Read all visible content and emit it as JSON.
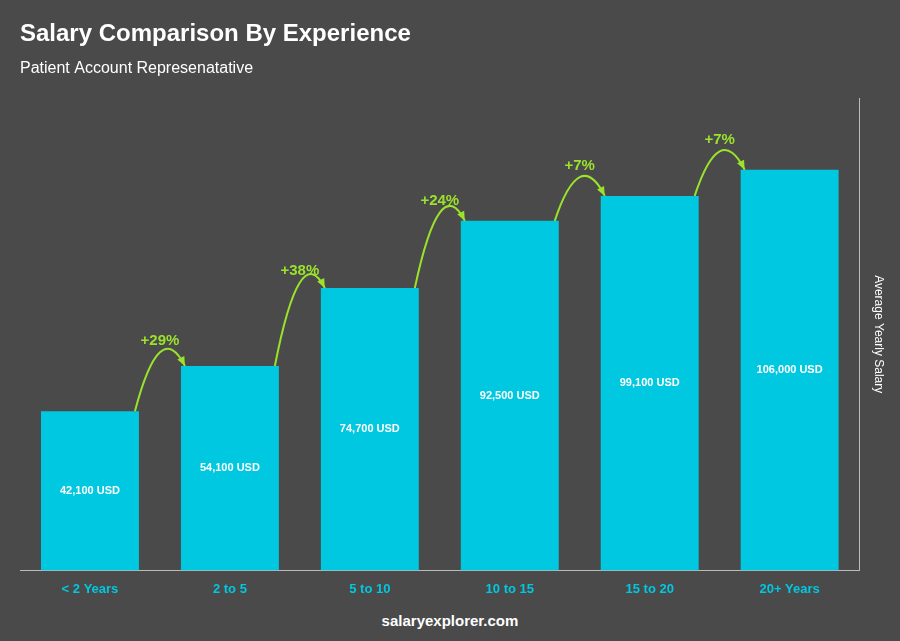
{
  "chart_data": {
    "type": "bar",
    "title": "Salary Comparison By Experience",
    "subtitle": "Patient Account Represenatative",
    "y_label": "Average Yearly Salary",
    "categories": [
      "< 2 Years",
      "2 to 5",
      "5 to 10",
      "10 to 15",
      "15 to 20",
      "20+ Years"
    ],
    "values": [
      42100,
      54100,
      74700,
      92500,
      99100,
      106000
    ],
    "value_labels": [
      "42,100 USD",
      "54,100 USD",
      "74,700 USD",
      "92,500 USD",
      "99,100 USD",
      "106,000 USD"
    ],
    "data_labels": true,
    "change_labels": [
      null,
      "+29%",
      "+38%",
      "+24%",
      "+7%",
      "+7%"
    ],
    "annotations": [
      "salaryexplorer.com"
    ],
    "color": "#00c8e0",
    "ylim": [
      0,
      125000
    ],
    "grid": false,
    "tick_labels": "x"
  }
}
